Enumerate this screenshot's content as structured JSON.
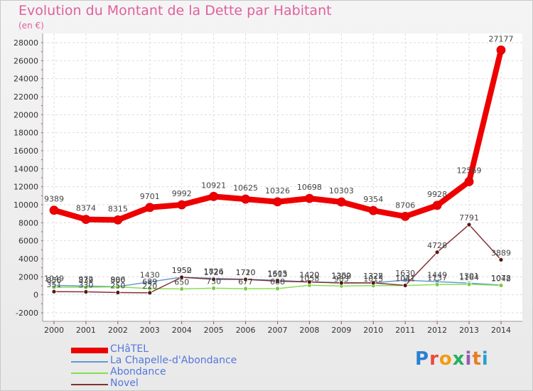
{
  "chart_data": {
    "type": "line",
    "title": "Evolution du Montant de la Dette par Habitant",
    "unit_label": "(en €)",
    "ylim": [
      -2000,
      28000
    ],
    "ytick_step": 2000,
    "categories": [
      "2000",
      "2001",
      "2002",
      "2003",
      "2004",
      "2005",
      "2006",
      "2007",
      "2008",
      "2009",
      "2010",
      "2011",
      "2012",
      "2013",
      "2014"
    ],
    "series": [
      {
        "name": "CHâTEL",
        "color": "#ee0000",
        "width": 8,
        "marker": "#ee0000",
        "labels": true,
        "values": [
          9389,
          8374,
          8315,
          9701,
          9992,
          10921,
          10625,
          10326,
          10698,
          10303,
          9354,
          8706,
          9928,
          12569,
          27177
        ]
      },
      {
        "name": "La Chapelle-d'Abondance",
        "color": "#6699cc",
        "width": 1.5,
        "marker": "#4f8fcf",
        "labels": true,
        "values": [
          1049,
          972,
          906,
          1430,
          1952,
          1826,
          1720,
          1605,
          1420,
          1352,
          1322,
          1630,
          1449,
          1301,
          1078
        ]
      },
      {
        "name": "Abondance",
        "color": "#88dd55",
        "width": 1.5,
        "marker": "#77cc44",
        "labels": true,
        "values": [
          856,
          839,
          880,
          689,
          650,
          730,
          677,
          688,
          1058,
          983,
          1015,
          1031,
          1137,
          1164,
          1042
        ]
      },
      {
        "name": "Novel",
        "color": "#803333",
        "width": 1.5,
        "marker": "#5a1515",
        "labels": true,
        "values": [
          351,
          330,
          250,
          220,
          1950,
          1724,
          1710,
          1513,
          1420,
          1309,
          1325,
          1041,
          4728,
          7791,
          3889
        ]
      }
    ]
  },
  "logo": {
    "letters": [
      "P",
      "r",
      "o",
      "x",
      "i",
      "t",
      "i"
    ],
    "colors": [
      "#2a7fd4",
      "#e74c3c",
      "#f39c12",
      "#27ae60",
      "#9b59b6",
      "#e67e22",
      "#2a9fd4"
    ]
  }
}
